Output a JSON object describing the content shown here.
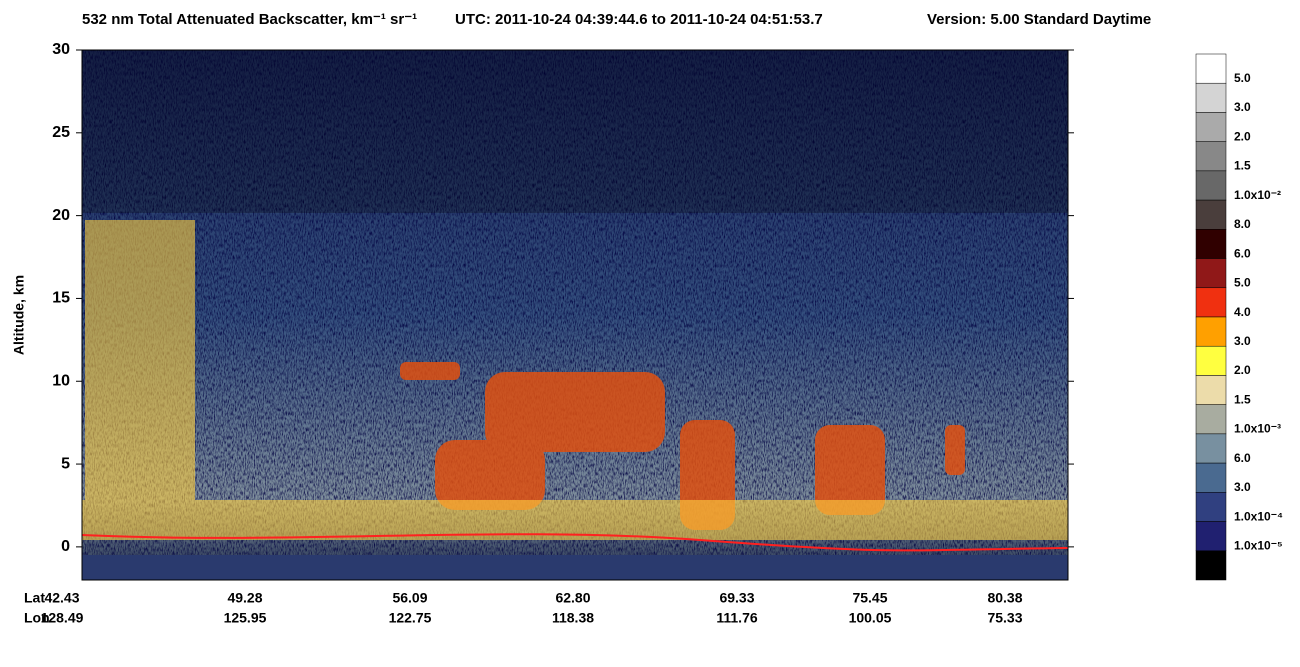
{
  "chart_data": {
    "type": "heatmap",
    "title": "532 nm Total Attenuated Backscatter, km⁻¹ sr⁻¹",
    "utc": "UTC:  2011-10-24 04:39:44.6  to  2011-10-24 04:51:53.7",
    "version": "Version: 5.00  Standard  Daytime",
    "ylabel": "Altitude, km",
    "ylim": [
      -2,
      30
    ],
    "yticks": [
      0,
      5,
      10,
      15,
      20,
      25,
      30
    ],
    "lat_label": "Lat",
    "lon_label": "Lon",
    "lat": [
      "42.43",
      "49.28",
      "56.09",
      "62.80",
      "69.33",
      "75.45",
      "80.38"
    ],
    "lon": [
      "128.49",
      "125.95",
      "122.75",
      "118.38",
      "111.76",
      "100.05",
      "75.33"
    ],
    "colorbar": {
      "colors": [
        "#ffffff",
        "#d4d4d4",
        "#aaaaaa",
        "#888888",
        "#686868",
        "#4a3e3c",
        "#300000",
        "#901818",
        "#f03010",
        "#ffa000",
        "#ffff40",
        "#ecdcaa",
        "#a8aca0",
        "#7890a0",
        "#4a6a90",
        "#304080",
        "#202070",
        "#000000"
      ],
      "labels": [
        "5.0",
        "3.0",
        "2.0",
        "1.5",
        "1.0x10⁻²",
        "8.0",
        "6.0",
        "5.0",
        "4.0",
        "3.0",
        "2.0",
        "1.5",
        "1.0x10⁻³",
        "6.0",
        "3.0",
        "1.0x10⁻⁴",
        "1.0x10⁻⁵"
      ]
    }
  }
}
